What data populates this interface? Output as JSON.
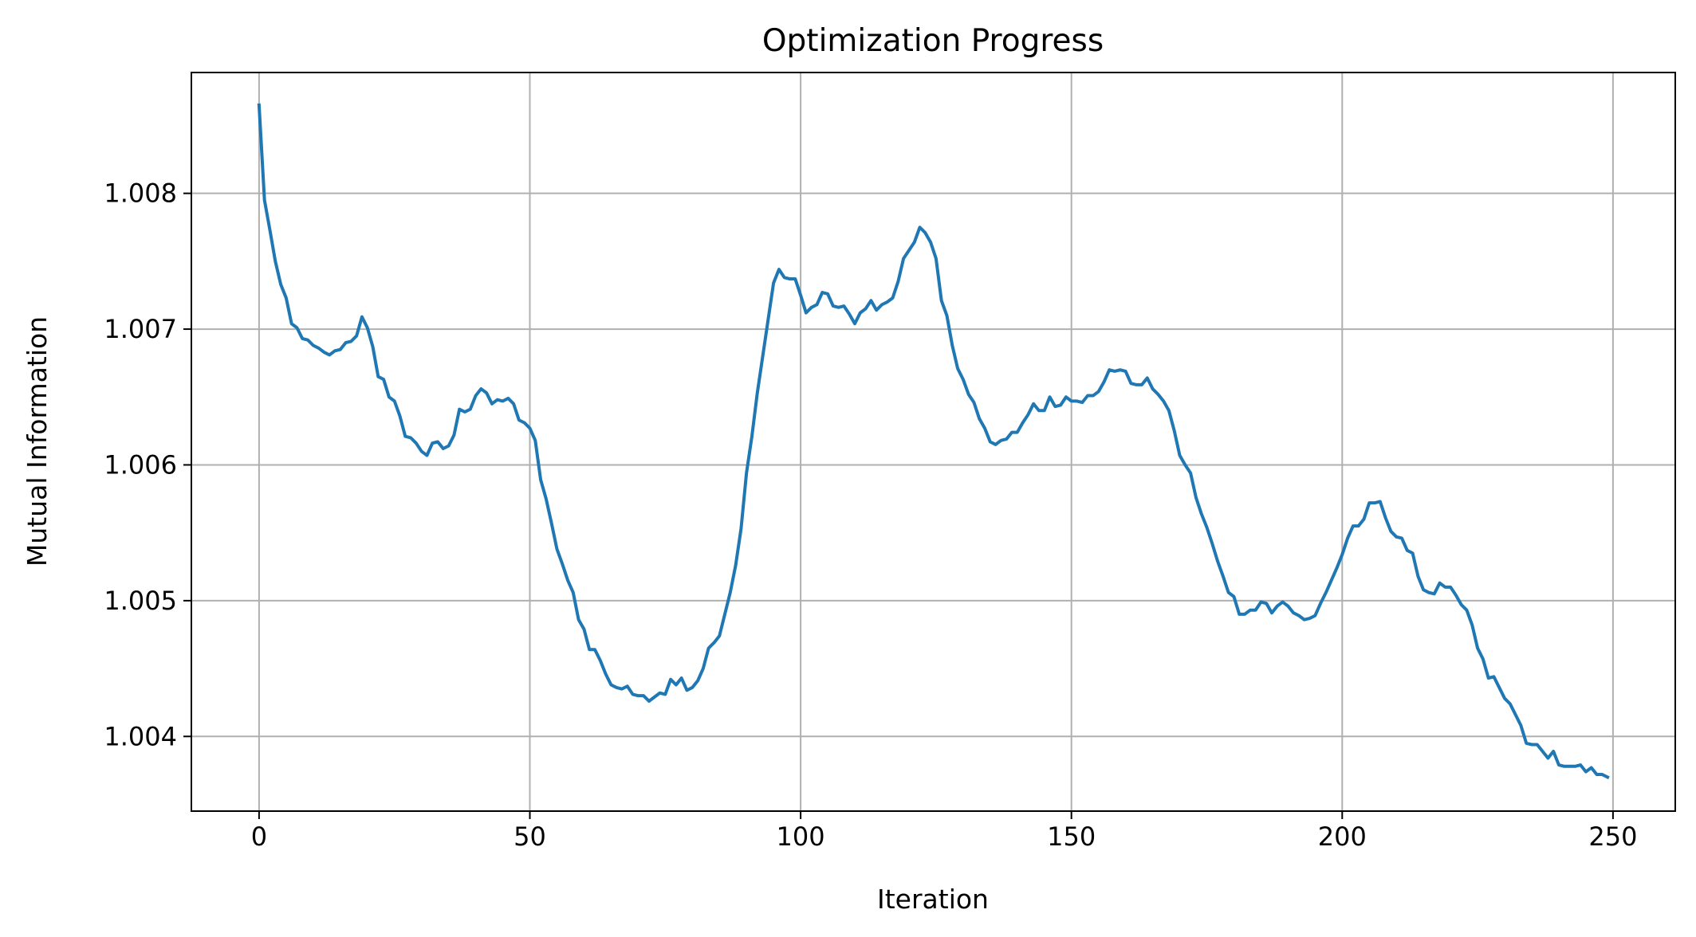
{
  "chart_data": {
    "type": "line",
    "title": "Optimization Progress",
    "xlabel": "Iteration",
    "ylabel": "Mutual Information",
    "xlim": [
      -12.5,
      261.5
    ],
    "ylim": [
      1.00345,
      1.00889
    ],
    "xticks": [
      0,
      50,
      100,
      150,
      200,
      250
    ],
    "xtick_labels": [
      "0",
      "50",
      "100",
      "150",
      "200",
      "250"
    ],
    "yticks": [
      1.004,
      1.005,
      1.006,
      1.007,
      1.008
    ],
    "ytick_labels": [
      "1.004",
      "1.005",
      "1.006",
      "1.007",
      "1.008"
    ],
    "grid": true,
    "color": "#1f77b4",
    "series": [
      {
        "x_start": 0,
        "x_step": 1,
        "values": [
          1.00865,
          1.00795,
          1.00773,
          1.0075,
          1.00733,
          1.00723,
          1.00704,
          1.00701,
          1.00693,
          1.00692,
          1.00688,
          1.00686,
          1.00683,
          1.00681,
          1.00684,
          1.00685,
          1.0069,
          1.00691,
          1.00695,
          1.00709,
          1.00701,
          1.00687,
          1.00665,
          1.00663,
          1.0065,
          1.00647,
          1.00636,
          1.00621,
          1.0062,
          1.00616,
          1.0061,
          1.00607,
          1.00616,
          1.00617,
          1.00612,
          1.00614,
          1.00622,
          1.00641,
          1.00639,
          1.00641,
          1.00651,
          1.00656,
          1.00653,
          1.00645,
          1.00648,
          1.00647,
          1.00649,
          1.00645,
          1.00633,
          1.00631,
          1.00627,
          1.00618,
          1.00589,
          1.00575,
          1.00557,
          1.00538,
          1.00527,
          1.00515,
          1.00506,
          1.00486,
          1.00479,
          1.00464,
          1.00464,
          1.00456,
          1.00446,
          1.00438,
          1.00436,
          1.00435,
          1.00437,
          1.00431,
          1.0043,
          1.0043,
          1.00426,
          1.00429,
          1.00432,
          1.00431,
          1.00442,
          1.00438,
          1.00443,
          1.00434,
          1.00436,
          1.00441,
          1.0045,
          1.00465,
          1.00469,
          1.00474,
          1.0049,
          1.00506,
          1.00526,
          1.00553,
          1.00594,
          1.00621,
          1.00653,
          1.0068,
          1.00707,
          1.00734,
          1.00744,
          1.00738,
          1.00737,
          1.00737,
          1.00725,
          1.00712,
          1.00716,
          1.00718,
          1.00727,
          1.00726,
          1.00717,
          1.00716,
          1.00717,
          1.00711,
          1.00704,
          1.00712,
          1.00715,
          1.00721,
          1.00714,
          1.00718,
          1.0072,
          1.00723,
          1.00735,
          1.00752,
          1.00758,
          1.00764,
          1.00775,
          1.00771,
          1.00764,
          1.00752,
          1.00721,
          1.0071,
          1.00688,
          1.00671,
          1.00663,
          1.00652,
          1.00646,
          1.00634,
          1.00627,
          1.00617,
          1.00615,
          1.00618,
          1.00619,
          1.00624,
          1.00624,
          1.00631,
          1.00637,
          1.00645,
          1.0064,
          1.0064,
          1.0065,
          1.00643,
          1.00644,
          1.0065,
          1.00647,
          1.00647,
          1.00646,
          1.00651,
          1.00651,
          1.00654,
          1.00661,
          1.0067,
          1.00669,
          1.0067,
          1.00669,
          1.0066,
          1.00659,
          1.00659,
          1.00664,
          1.00656,
          1.00652,
          1.00647,
          1.0064,
          1.00625,
          1.00607,
          1.006,
          1.00594,
          1.00576,
          1.00564,
          1.00554,
          1.00542,
          1.00529,
          1.00518,
          1.00506,
          1.00503,
          1.0049,
          1.0049,
          1.00493,
          1.00493,
          1.00499,
          1.00498,
          1.00491,
          1.00496,
          1.00499,
          1.00496,
          1.00491,
          1.00489,
          1.00486,
          1.00487,
          1.00489,
          1.00498,
          1.00506,
          1.00515,
          1.00524,
          1.00534,
          1.00546,
          1.00555,
          1.00555,
          1.0056,
          1.00572,
          1.00572,
          1.00573,
          1.00561,
          1.00551,
          1.00547,
          1.00546,
          1.00537,
          1.00535,
          1.00518,
          1.00508,
          1.00506,
          1.00505,
          1.00513,
          1.0051,
          1.0051,
          1.00504,
          1.00497,
          1.00493,
          1.00482,
          1.00465,
          1.00457,
          1.00443,
          1.00444,
          1.00436,
          1.00428,
          1.00424,
          1.00416,
          1.00408,
          1.00395,
          1.00394,
          1.00394,
          1.00389,
          1.00384,
          1.00389,
          1.00379,
          1.00378,
          1.00378,
          1.00378,
          1.00379,
          1.00374,
          1.00377,
          1.00372,
          1.00372,
          1.0037
        ]
      }
    ]
  }
}
